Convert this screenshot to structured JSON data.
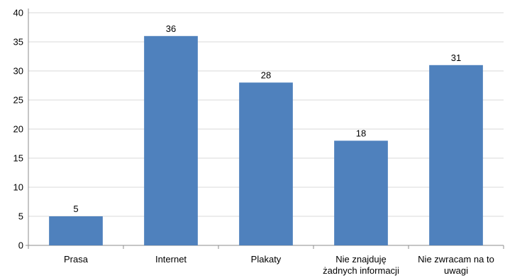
{
  "chart_data": {
    "type": "bar",
    "categories": [
      [
        "Prasa"
      ],
      [
        "Internet"
      ],
      [
        "Plakaty"
      ],
      [
        "Nie znajduję",
        "żadnych informacji"
      ],
      [
        "Nie zwracam na to",
        "uwagi"
      ]
    ],
    "values": [
      5,
      36,
      28,
      18,
      31
    ],
    "ylim": [
      0,
      40
    ],
    "yticks": [
      0,
      5,
      10,
      15,
      20,
      25,
      30,
      35,
      40
    ],
    "grid": true,
    "legend": "none",
    "colors": {
      "bar": "#4f81bd"
    }
  }
}
